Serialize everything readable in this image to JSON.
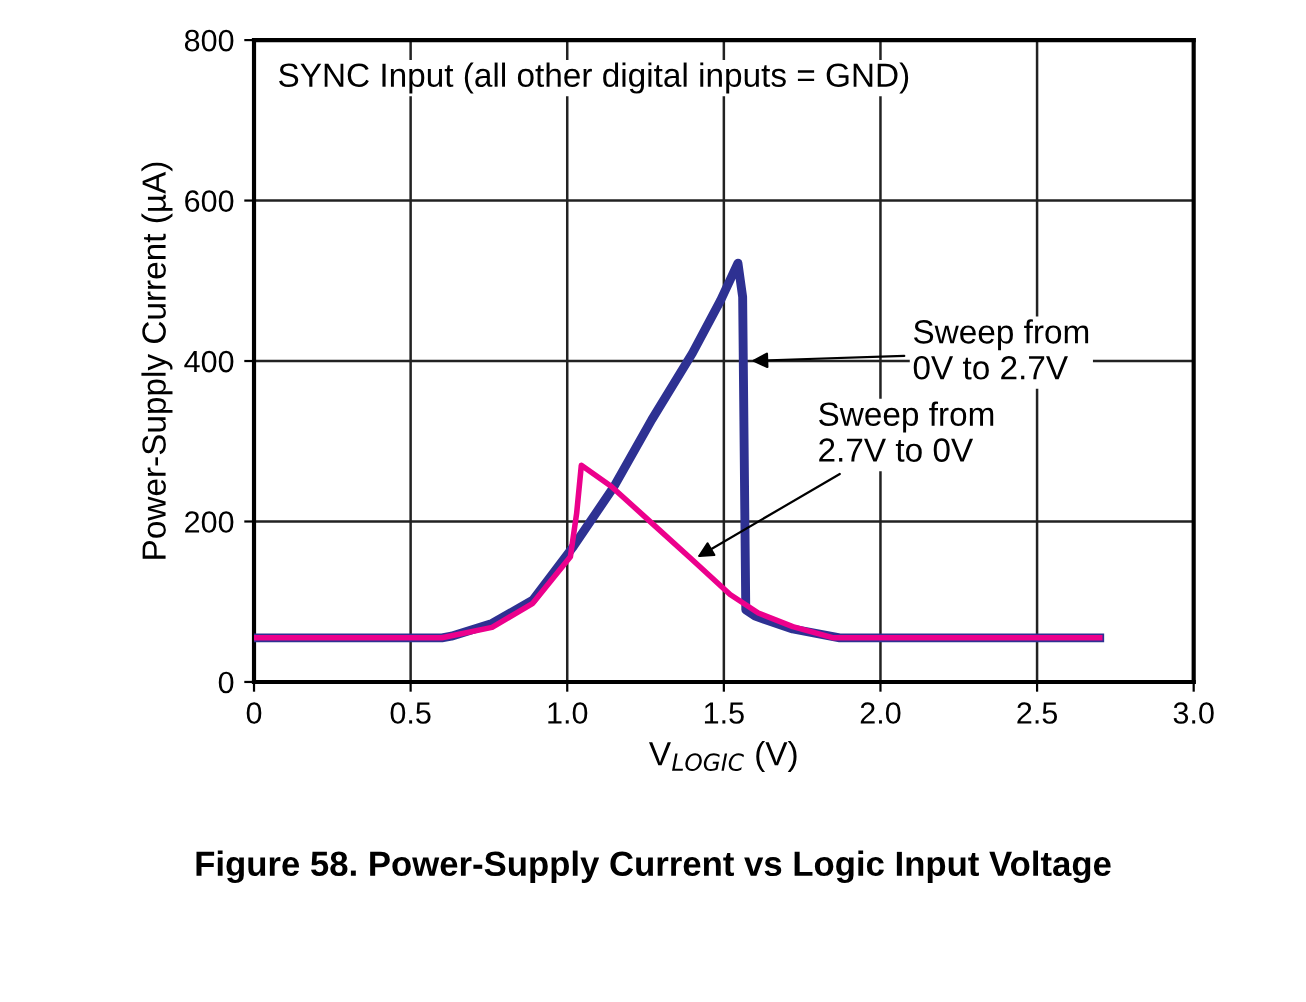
{
  "chart_data": {
    "type": "line",
    "title": "Figure 58. Power-Supply Current vs Logic Input Voltage",
    "xlabel": "V$_{LOGIC}$ (V)",
    "ylabel": "Power-Supply Current (µA)",
    "xlim": [
      0,
      3.0
    ],
    "xticks": [
      0,
      {
        "value": 0.5,
        "label": "0.5"
      },
      {
        "value": 1,
        "label": "1.0"
      },
      {
        "value": 1.5,
        "label": "1.5"
      },
      {
        "value": 2,
        "label": "2.0"
      },
      {
        "value": 2.5,
        "label": "2.5"
      },
      {
        "value": 3,
        "label": "3.0"
      }
    ],
    "ylim": [
      0,
      800
    ],
    "yticks": [
      0,
      200,
      400,
      600,
      800
    ],
    "grid": true,
    "legend": false,
    "marker": "none",
    "line_style": "solid",
    "annotations": [
      "SYNC Input (all other digital inputs = GND)",
      {
        "text": "Sweep from\n0V to 2.7V",
        "x": 1.57,
        "y": 400
      },
      {
        "text": "Sweep from\n2.7V to 0V",
        "x": 1.4,
        "y": 152
      }
    ],
    "series": [
      {
        "color": "#2e3192",
        "x": [
          0,
          0.6,
          0.63,
          0.76,
          0.89,
          1.02,
          1.15,
          1.27,
          1.4,
          1.49,
          1.545,
          1.56,
          1.57,
          1.6,
          1.72,
          1.87,
          2.7
        ],
        "values": [
          55,
          55,
          57,
          73,
          102,
          169,
          244,
          327,
          410,
          476,
          522,
          480,
          90,
          82,
          66,
          55,
          55
        ]
      },
      {
        "color": "#ec008c",
        "x": [
          0,
          0.6,
          0.76,
          0.89,
          1.01,
          1.03,
          1.045,
          1.14,
          1.27,
          1.4,
          1.52,
          1.61,
          1.72,
          1.85,
          2.7
        ],
        "values": [
          55,
          55,
          68,
          98,
          156,
          210,
          270,
          244,
          198,
          152,
          109,
          86,
          69,
          55,
          55
        ]
      }
    ]
  }
}
